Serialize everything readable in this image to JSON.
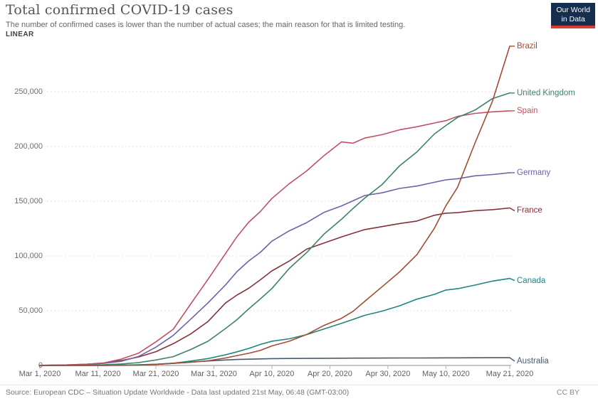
{
  "header": {
    "title": "Total confirmed COVID-19 cases",
    "subtitle": "The number of confirmed cases is lower than the number of actual cases; the main reason for that is limited testing.",
    "scale_label": "LINEAR",
    "logo": {
      "line1": "Our World",
      "line2": "in Data",
      "bg": "#152d4f",
      "accent": "#d93b33"
    }
  },
  "footer": {
    "source": "Source: European CDC – Situation Update Worldwide - Data last updated 21st May, 06:48 (GMT-03:00)",
    "license": "CC BY"
  },
  "chart_data": {
    "type": "line",
    "title": "Total confirmed COVID-19 cases",
    "xlabel": "",
    "ylabel": "",
    "grid": "dashed-horizontal",
    "legend_position": "right-edge-labels",
    "ylim": [
      0,
      295000
    ],
    "x_range": [
      "Mar 1, 2020",
      "May 21, 2020"
    ],
    "y_ticks": [
      {
        "value": 0,
        "label": "0"
      },
      {
        "value": 50000,
        "label": "50,000"
      },
      {
        "value": 100000,
        "label": "100,000"
      },
      {
        "value": 150000,
        "label": "150,000"
      },
      {
        "value": 200000,
        "label": "200,000"
      },
      {
        "value": 250000,
        "label": "250,000"
      }
    ],
    "x_ticks": [
      {
        "day": 0,
        "label": "Mar 1, 2020"
      },
      {
        "day": 10,
        "label": "Mar 11, 2020"
      },
      {
        "day": 20,
        "label": "Mar 21, 2020"
      },
      {
        "day": 30,
        "label": "Mar 31, 2020"
      },
      {
        "day": 40,
        "label": "Apr 10, 2020"
      },
      {
        "day": 50,
        "label": "Apr 20, 2020"
      },
      {
        "day": 60,
        "label": "Apr 30, 2020"
      },
      {
        "day": 70,
        "label": "May 10, 2020"
      },
      {
        "day": 81,
        "label": "May 21, 2020"
      }
    ],
    "x_days": [
      0,
      4,
      8,
      11,
      14,
      17,
      20,
      23,
      26,
      29,
      32,
      34,
      36,
      38,
      40,
      43,
      46,
      49,
      52,
      54,
      56,
      59,
      62,
      65,
      68,
      70,
      72,
      75,
      78,
      81
    ],
    "series": [
      {
        "name": "Australia",
        "color": "#4b5a69",
        "label_dy": 5,
        "values": [
          25,
          52,
          80,
          122,
          249,
          454,
          1071,
          1887,
          3050,
          4093,
          4976,
          5454,
          5687,
          5956,
          6203,
          6359,
          6458,
          6547,
          6649,
          6675,
          6714,
          6752,
          6799,
          6849,
          6914,
          6941,
          6980,
          7019,
          7060,
          7081
        ]
      },
      {
        "name": "Canada",
        "color": "#20847f",
        "label_dy": 3,
        "values": [
          24,
          37,
          64,
          117,
          252,
          569,
          1087,
          2091,
          4043,
          6317,
          9731,
          12437,
          15512,
          19141,
          22148,
          24383,
          28209,
          33383,
          38422,
          42110,
          45791,
          49616,
          54457,
          60504,
          64922,
          68918,
          70091,
          73401,
          77002,
          79502
        ]
      },
      {
        "name": "France",
        "color": "#883039",
        "label_dy": 4,
        "values": [
          100,
          377,
          1126,
          2269,
          4499,
          7730,
          12612,
          19856,
          28786,
          40174,
          56989,
          64338,
          70478,
          78167,
          86334,
          95403,
          106206,
          111821,
          117324,
          120804,
          124114,
          126835,
          129581,
          131863,
          137150,
          139063,
          139519,
          141356,
          142291,
          143845
        ]
      },
      {
        "name": "Germany",
        "color": "#6d63a8",
        "label_dy": 0,
        "values": [
          117,
          400,
          1112,
          1880,
          3795,
          8198,
          16662,
          27436,
          42288,
          57298,
          73522,
          85778,
          95391,
          103228,
          113525,
          123016,
          130450,
          139897,
          145694,
          150383,
          155193,
          157641,
          161703,
          163860,
          167300,
          169575,
          170508,
          173152,
          174355,
          176007
        ]
      },
      {
        "name": "Spain",
        "color": "#c15065",
        "label_dy": 0,
        "values": [
          66,
          259,
          1024,
          2277,
          5753,
          11178,
          21571,
          33089,
          56188,
          78797,
          102136,
          117710,
          130759,
          140510,
          152446,
          166019,
          177633,
          191726,
          204178,
          202990,
          207634,
          210773,
          215216,
          218011,
          221447,
          223578,
          227436,
          230183,
          231606,
          232555
        ]
      },
      {
        "name": "United Kingdom",
        "color": "#3c8465",
        "label_dy": 0,
        "values": [
          36,
          115,
          321,
          590,
          1391,
          2626,
          5018,
          8077,
          14543,
          22141,
          33718,
          41903,
          51608,
          60733,
          70272,
          88621,
          103093,
          120067,
          133495,
          143464,
          152840,
          165221,
          182260,
          194990,
          211364,
          219183,
          226463,
          233151,
          243695,
          248818
        ]
      },
      {
        "name": "Brazil",
        "color": "#a34b33",
        "label_dy": 0,
        "values": [
          2,
          4,
          25,
          52,
          121,
          291,
          904,
          1891,
          2915,
          4256,
          6836,
          9056,
          11130,
          13717,
          17857,
          22169,
          28320,
          36599,
          43079,
          49492,
          58509,
          71886,
          85380,
          101147,
          125218,
          145892,
          162699,
          202918,
          241080,
          291579
        ]
      }
    ]
  }
}
